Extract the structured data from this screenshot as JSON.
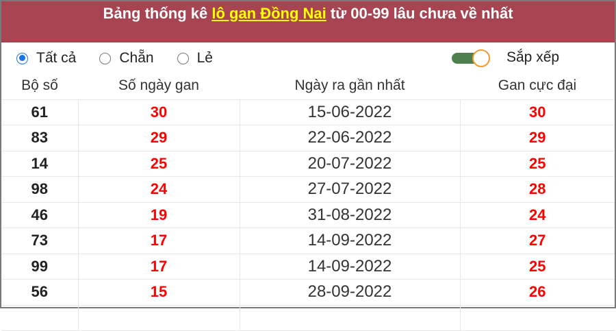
{
  "title": {
    "prefix": "Bảng thống kê ",
    "link": "lô gan Đồng Nai",
    "suffix": " từ 00-99 lâu chưa về nhất"
  },
  "filters": {
    "options": [
      "Tất cả",
      "Chẵn",
      "Lẻ"
    ],
    "selected": "Tất cả",
    "sort_label": "Sắp xếp",
    "sort_on": true
  },
  "colors": {
    "header_bg": "#a84452",
    "link": "#ffff00",
    "highlight": "#ff0000"
  },
  "table": {
    "columns": [
      "Bộ số",
      "Số ngày gan",
      "Ngày ra gần nhất",
      "Gan cực đại"
    ],
    "rows": [
      [
        "61",
        "30",
        "15-06-2022",
        "30"
      ],
      [
        "83",
        "29",
        "22-06-2022",
        "29"
      ],
      [
        "14",
        "25",
        "20-07-2022",
        "25"
      ],
      [
        "98",
        "24",
        "27-07-2022",
        "28"
      ],
      [
        "46",
        "19",
        "31-08-2022",
        "24"
      ],
      [
        "73",
        "17",
        "14-09-2022",
        "27"
      ],
      [
        "99",
        "17",
        "14-09-2022",
        "25"
      ],
      [
        "56",
        "15",
        "28-09-2022",
        "26"
      ]
    ]
  }
}
